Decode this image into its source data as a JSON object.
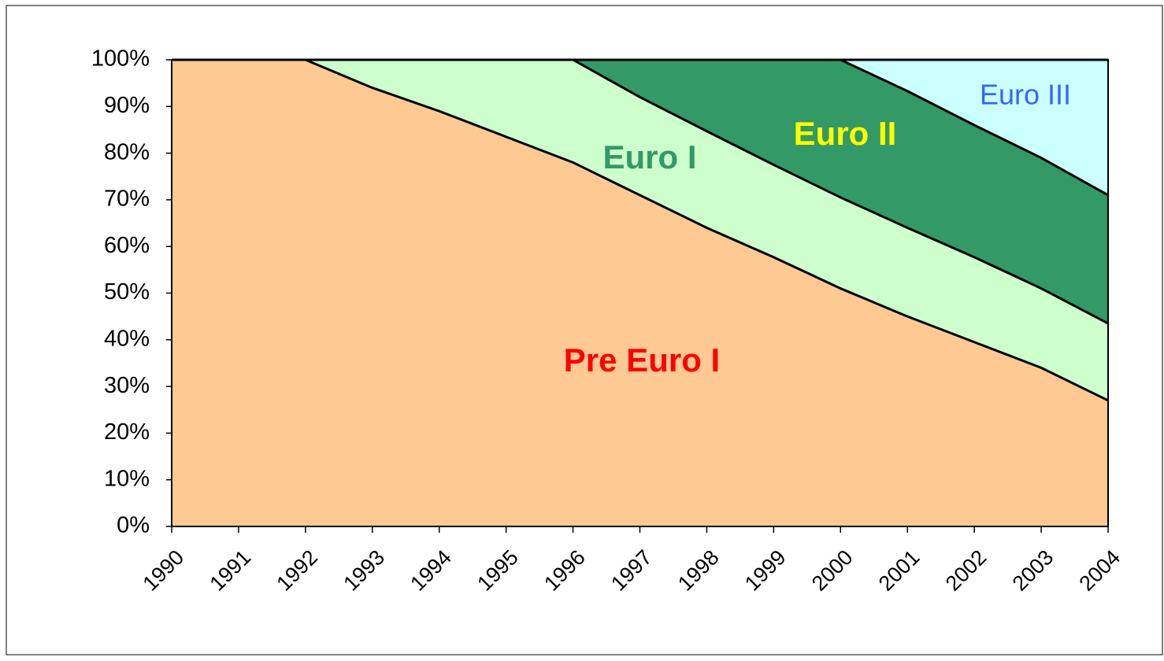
{
  "chart_data": {
    "type": "stacked-area",
    "categories": [
      "1990",
      "1991",
      "1992",
      "1993",
      "1994",
      "1995",
      "1996",
      "1997",
      "1998",
      "1999",
      "2000",
      "2001",
      "2002",
      "2003",
      "2004"
    ],
    "series": [
      {
        "name": "Pre Euro I",
        "color": "#ffc993",
        "label_color": "#ff0000",
        "values": [
          100,
          100,
          100,
          94,
          89,
          83.5,
          78,
          71,
          64,
          57.7,
          51,
          45,
          39.5,
          34,
          27
        ]
      },
      {
        "name": "Euro I",
        "color": "#ccffcc",
        "label_color": "#339966",
        "values": [
          0,
          0,
          0,
          6,
          11,
          16.5,
          22,
          21,
          20.7,
          19.8,
          19.5,
          19,
          18.2,
          17,
          16.5
        ]
      },
      {
        "name": "Euro II",
        "color": "#339966",
        "label_color": "#ffff00",
        "values": [
          0,
          0,
          0,
          0,
          0,
          0,
          0,
          8,
          15.3,
          22.5,
          29.5,
          29.3,
          28.3,
          28,
          27.5
        ]
      },
      {
        "name": "Euro III",
        "color": "#ccffff",
        "label_color": "#3366ff",
        "values": [
          0,
          0,
          0,
          0,
          0,
          0,
          0,
          0,
          0,
          0,
          0,
          6.7,
          14,
          21,
          29
        ]
      }
    ],
    "ylim": [
      0,
      100
    ],
    "yticks": [
      {
        "value": 0,
        "label": "0%"
      },
      {
        "value": 10,
        "label": "10%"
      },
      {
        "value": 20,
        "label": "20%"
      },
      {
        "value": 30,
        "label": "30%"
      },
      {
        "value": 40,
        "label": "40%"
      },
      {
        "value": 50,
        "label": "50%"
      },
      {
        "value": 60,
        "label": "60%"
      },
      {
        "value": 70,
        "label": "70%"
      },
      {
        "value": 80,
        "label": "80%"
      },
      {
        "value": 90,
        "label": "90%"
      },
      {
        "value": 100,
        "label": "100%"
      }
    ]
  }
}
